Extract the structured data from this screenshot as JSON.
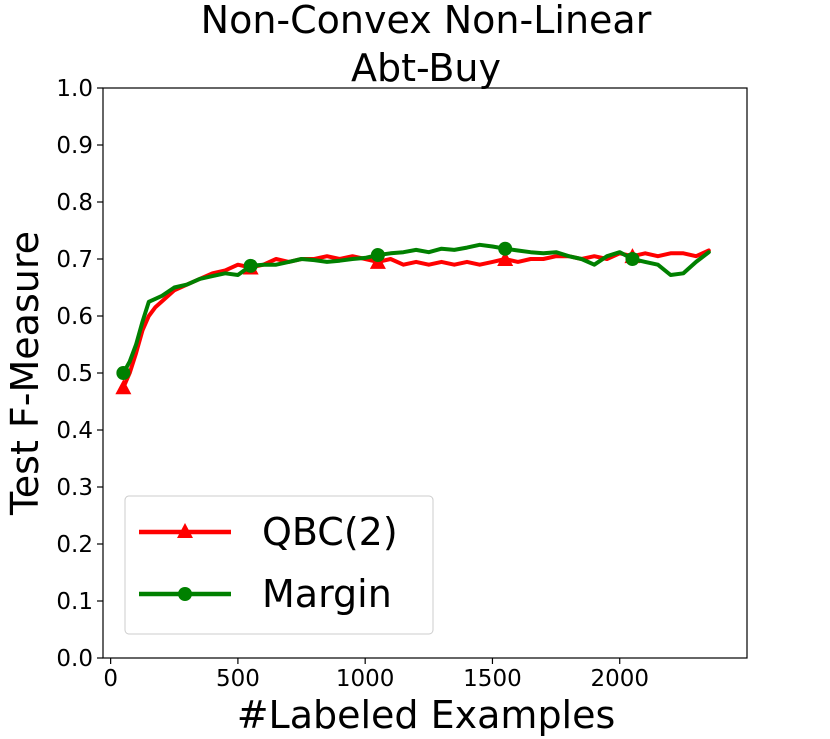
{
  "chart_data": {
    "type": "line",
    "title": "Non-Convex Non-Linear",
    "subtitle": "Abt-Buy",
    "xlabel": "#Labeled Examples",
    "ylabel": "Test F-Measure",
    "xlim": [
      -30,
      2500
    ],
    "ylim": [
      0.0,
      1.0
    ],
    "xticks": [
      0,
      500,
      1000,
      1500,
      2000
    ],
    "xtick_labels": [
      "0",
      "500",
      "1000",
      "1500",
      "2000"
    ],
    "yticks": [
      0.0,
      0.1,
      0.2,
      0.3,
      0.4,
      0.5,
      0.6,
      0.7,
      0.8,
      0.9,
      1.0
    ],
    "ytick_labels": [
      "0.0",
      "0.1",
      "0.2",
      "0.3",
      "0.4",
      "0.5",
      "0.6",
      "0.7",
      "0.8",
      "0.9",
      "1.0"
    ],
    "grid": false,
    "legend_position": "bottom-left",
    "series": [
      {
        "name": "QBC(2)",
        "color": "#ff0000",
        "marker": "triangle",
        "marker_x": [
          50,
          550,
          1050,
          1550,
          2050
        ],
        "x": [
          50,
          75,
          100,
          125,
          150,
          175,
          200,
          250,
          300,
          350,
          400,
          450,
          500,
          550,
          600,
          650,
          700,
          750,
          800,
          850,
          900,
          950,
          1000,
          1050,
          1100,
          1150,
          1200,
          1250,
          1300,
          1350,
          1400,
          1450,
          1500,
          1550,
          1600,
          1650,
          1700,
          1750,
          1800,
          1850,
          1900,
          1950,
          2000,
          2050,
          2100,
          2150,
          2200,
          2250,
          2300,
          2350
        ],
        "y": [
          0.475,
          0.5,
          0.535,
          0.575,
          0.6,
          0.615,
          0.625,
          0.645,
          0.655,
          0.665,
          0.675,
          0.68,
          0.69,
          0.685,
          0.69,
          0.7,
          0.695,
          0.7,
          0.7,
          0.705,
          0.7,
          0.705,
          0.7,
          0.695,
          0.7,
          0.69,
          0.695,
          0.69,
          0.695,
          0.69,
          0.695,
          0.69,
          0.695,
          0.7,
          0.695,
          0.7,
          0.7,
          0.705,
          0.705,
          0.7,
          0.705,
          0.7,
          0.71,
          0.705,
          0.71,
          0.705,
          0.71,
          0.71,
          0.705,
          0.715
        ]
      },
      {
        "name": "Margin",
        "color": "#008000",
        "marker": "circle",
        "marker_x": [
          50,
          550,
          1050,
          1550,
          2050
        ],
        "x": [
          50,
          75,
          100,
          125,
          150,
          175,
          200,
          250,
          300,
          350,
          400,
          450,
          500,
          550,
          600,
          650,
          700,
          750,
          800,
          850,
          900,
          950,
          1000,
          1050,
          1100,
          1150,
          1200,
          1250,
          1300,
          1350,
          1400,
          1450,
          1500,
          1550,
          1600,
          1650,
          1700,
          1750,
          1800,
          1850,
          1900,
          1950,
          2000,
          2050,
          2100,
          2150,
          2200,
          2250,
          2300,
          2350
        ],
        "y": [
          0.5,
          0.52,
          0.55,
          0.59,
          0.625,
          0.63,
          0.635,
          0.65,
          0.655,
          0.665,
          0.67,
          0.675,
          0.672,
          0.688,
          0.69,
          0.69,
          0.695,
          0.7,
          0.698,
          0.695,
          0.697,
          0.7,
          0.702,
          0.707,
          0.71,
          0.712,
          0.716,
          0.712,
          0.718,
          0.716,
          0.72,
          0.725,
          0.722,
          0.718,
          0.715,
          0.712,
          0.71,
          0.712,
          0.705,
          0.7,
          0.69,
          0.705,
          0.712,
          0.7,
          0.695,
          0.69,
          0.672,
          0.675,
          0.695,
          0.712
        ]
      }
    ]
  }
}
